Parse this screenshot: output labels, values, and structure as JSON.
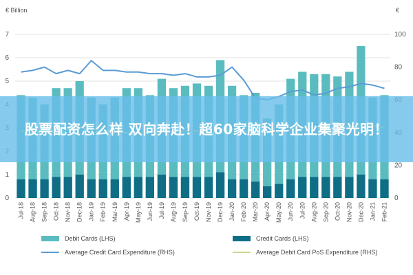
{
  "page": {
    "overlay_caption": "股票配资怎么样 双向奔赴！超60家脑科学企业集聚光明！"
  },
  "chart_data": {
    "type": "bar",
    "left_unit": "€ Billion",
    "right_unit": "€",
    "categories": [
      "Jul-18",
      "Aug-18",
      "Sep-18",
      "Oct-18",
      "Nov-18",
      "Dec-18",
      "Jan-19",
      "Feb-19",
      "Mar-19",
      "Apr-19",
      "May-19",
      "Jun-19",
      "Jul-19",
      "Aug-19",
      "Sep-19",
      "Oct-19",
      "Nov-19",
      "Dec-19",
      "Jan-20",
      "Feb-20",
      "Mar-20",
      "Apr-20",
      "May-20",
      "Jun-20",
      "Jul-20",
      "Aug-20",
      "Sep-20",
      "Oct-20",
      "Nov-20",
      "Dec-20",
      "Jan-21",
      "Feb-21"
    ],
    "y_left": {
      "min": 0,
      "max": 7,
      "ticks": [
        0,
        1,
        2,
        3,
        4,
        5,
        6,
        7
      ]
    },
    "y_right": {
      "min": 0,
      "max": 100,
      "ticks": [
        0,
        20,
        40,
        60,
        80,
        100
      ]
    },
    "series": [
      {
        "name": "Debit Cards (LHS)",
        "kind": "bar",
        "axis": "left",
        "color": "#5bbcc0",
        "values": [
          4.4,
          4.3,
          4.0,
          4.7,
          4.7,
          5.0,
          4.3,
          4.0,
          4.3,
          4.7,
          4.7,
          4.4,
          5.1,
          4.7,
          4.8,
          4.9,
          4.8,
          5.9,
          4.8,
          4.4,
          4.5,
          3.4,
          4.0,
          5.1,
          5.4,
          5.3,
          5.3,
          5.2,
          5.4,
          6.5,
          4.3,
          4.4
        ]
      },
      {
        "name": "Credit Cards (LHS)",
        "kind": "bar",
        "axis": "left",
        "color": "#0f6e86",
        "values": [
          0.8,
          0.8,
          0.8,
          0.9,
          0.9,
          1.0,
          0.8,
          0.8,
          0.8,
          0.9,
          0.9,
          0.9,
          1.0,
          0.9,
          0.9,
          0.9,
          0.9,
          1.1,
          0.8,
          0.8,
          0.7,
          0.5,
          0.6,
          0.8,
          0.9,
          0.9,
          0.9,
          0.9,
          0.9,
          1.0,
          0.8,
          0.8
        ]
      },
      {
        "name": "Average Credit Card Expenditure (RHS)",
        "kind": "line",
        "axis": "right",
        "color": "#5b9bd5",
        "values": [
          77,
          78,
          80,
          76,
          78,
          76,
          84,
          78,
          78,
          77,
          77,
          76,
          76,
          75,
          76,
          74,
          74,
          75,
          80,
          72,
          61,
          60,
          62,
          65,
          66,
          63,
          64,
          67,
          68,
          70,
          69,
          67
        ]
      },
      {
        "name": "Average Debit Card PoS Expenditure (RHS)",
        "kind": "line",
        "axis": "right",
        "color": "#c9d98f",
        "values": [
          41,
          41,
          42,
          41,
          42,
          43,
          43,
          40,
          40,
          40,
          40,
          40,
          41,
          40,
          41,
          41,
          41,
          42,
          42,
          41,
          40,
          40,
          40,
          42,
          43,
          43,
          44,
          44,
          44,
          45,
          44,
          43
        ]
      }
    ],
    "legend": {
      "placement": "bottom"
    },
    "grid": true
  }
}
